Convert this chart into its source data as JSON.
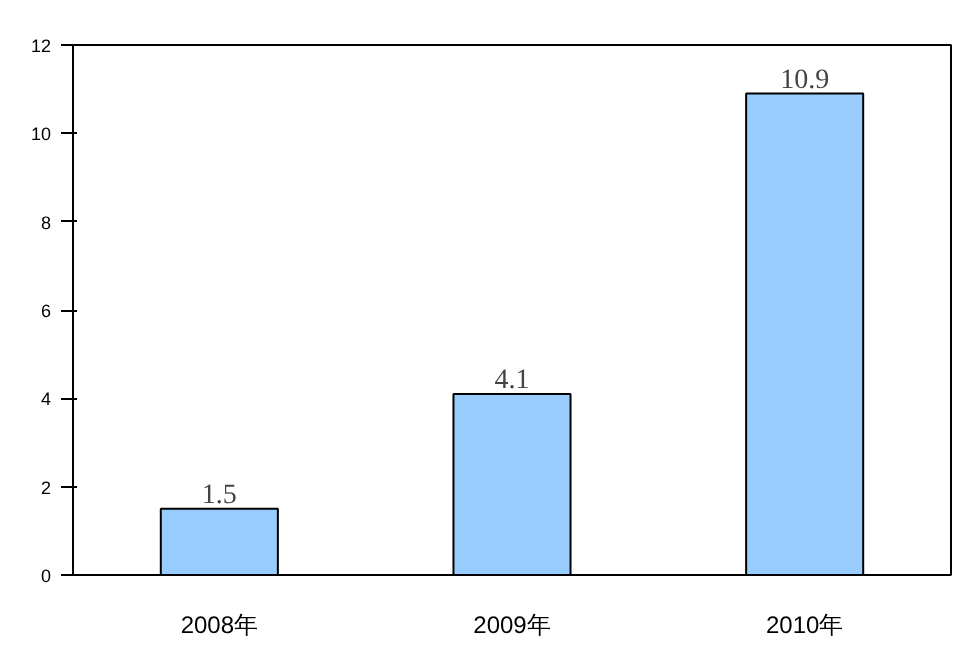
{
  "chart_data": {
    "type": "bar",
    "categories": [
      "2008年",
      "2009年",
      "2010年"
    ],
    "values": [
      1.5,
      4.1,
      10.9
    ],
    "color": "#99ccff",
    "ylim": [
      0,
      12
    ],
    "yticks": [
      0,
      2,
      4,
      6,
      8,
      10,
      12
    ],
    "data_labels": true
  }
}
